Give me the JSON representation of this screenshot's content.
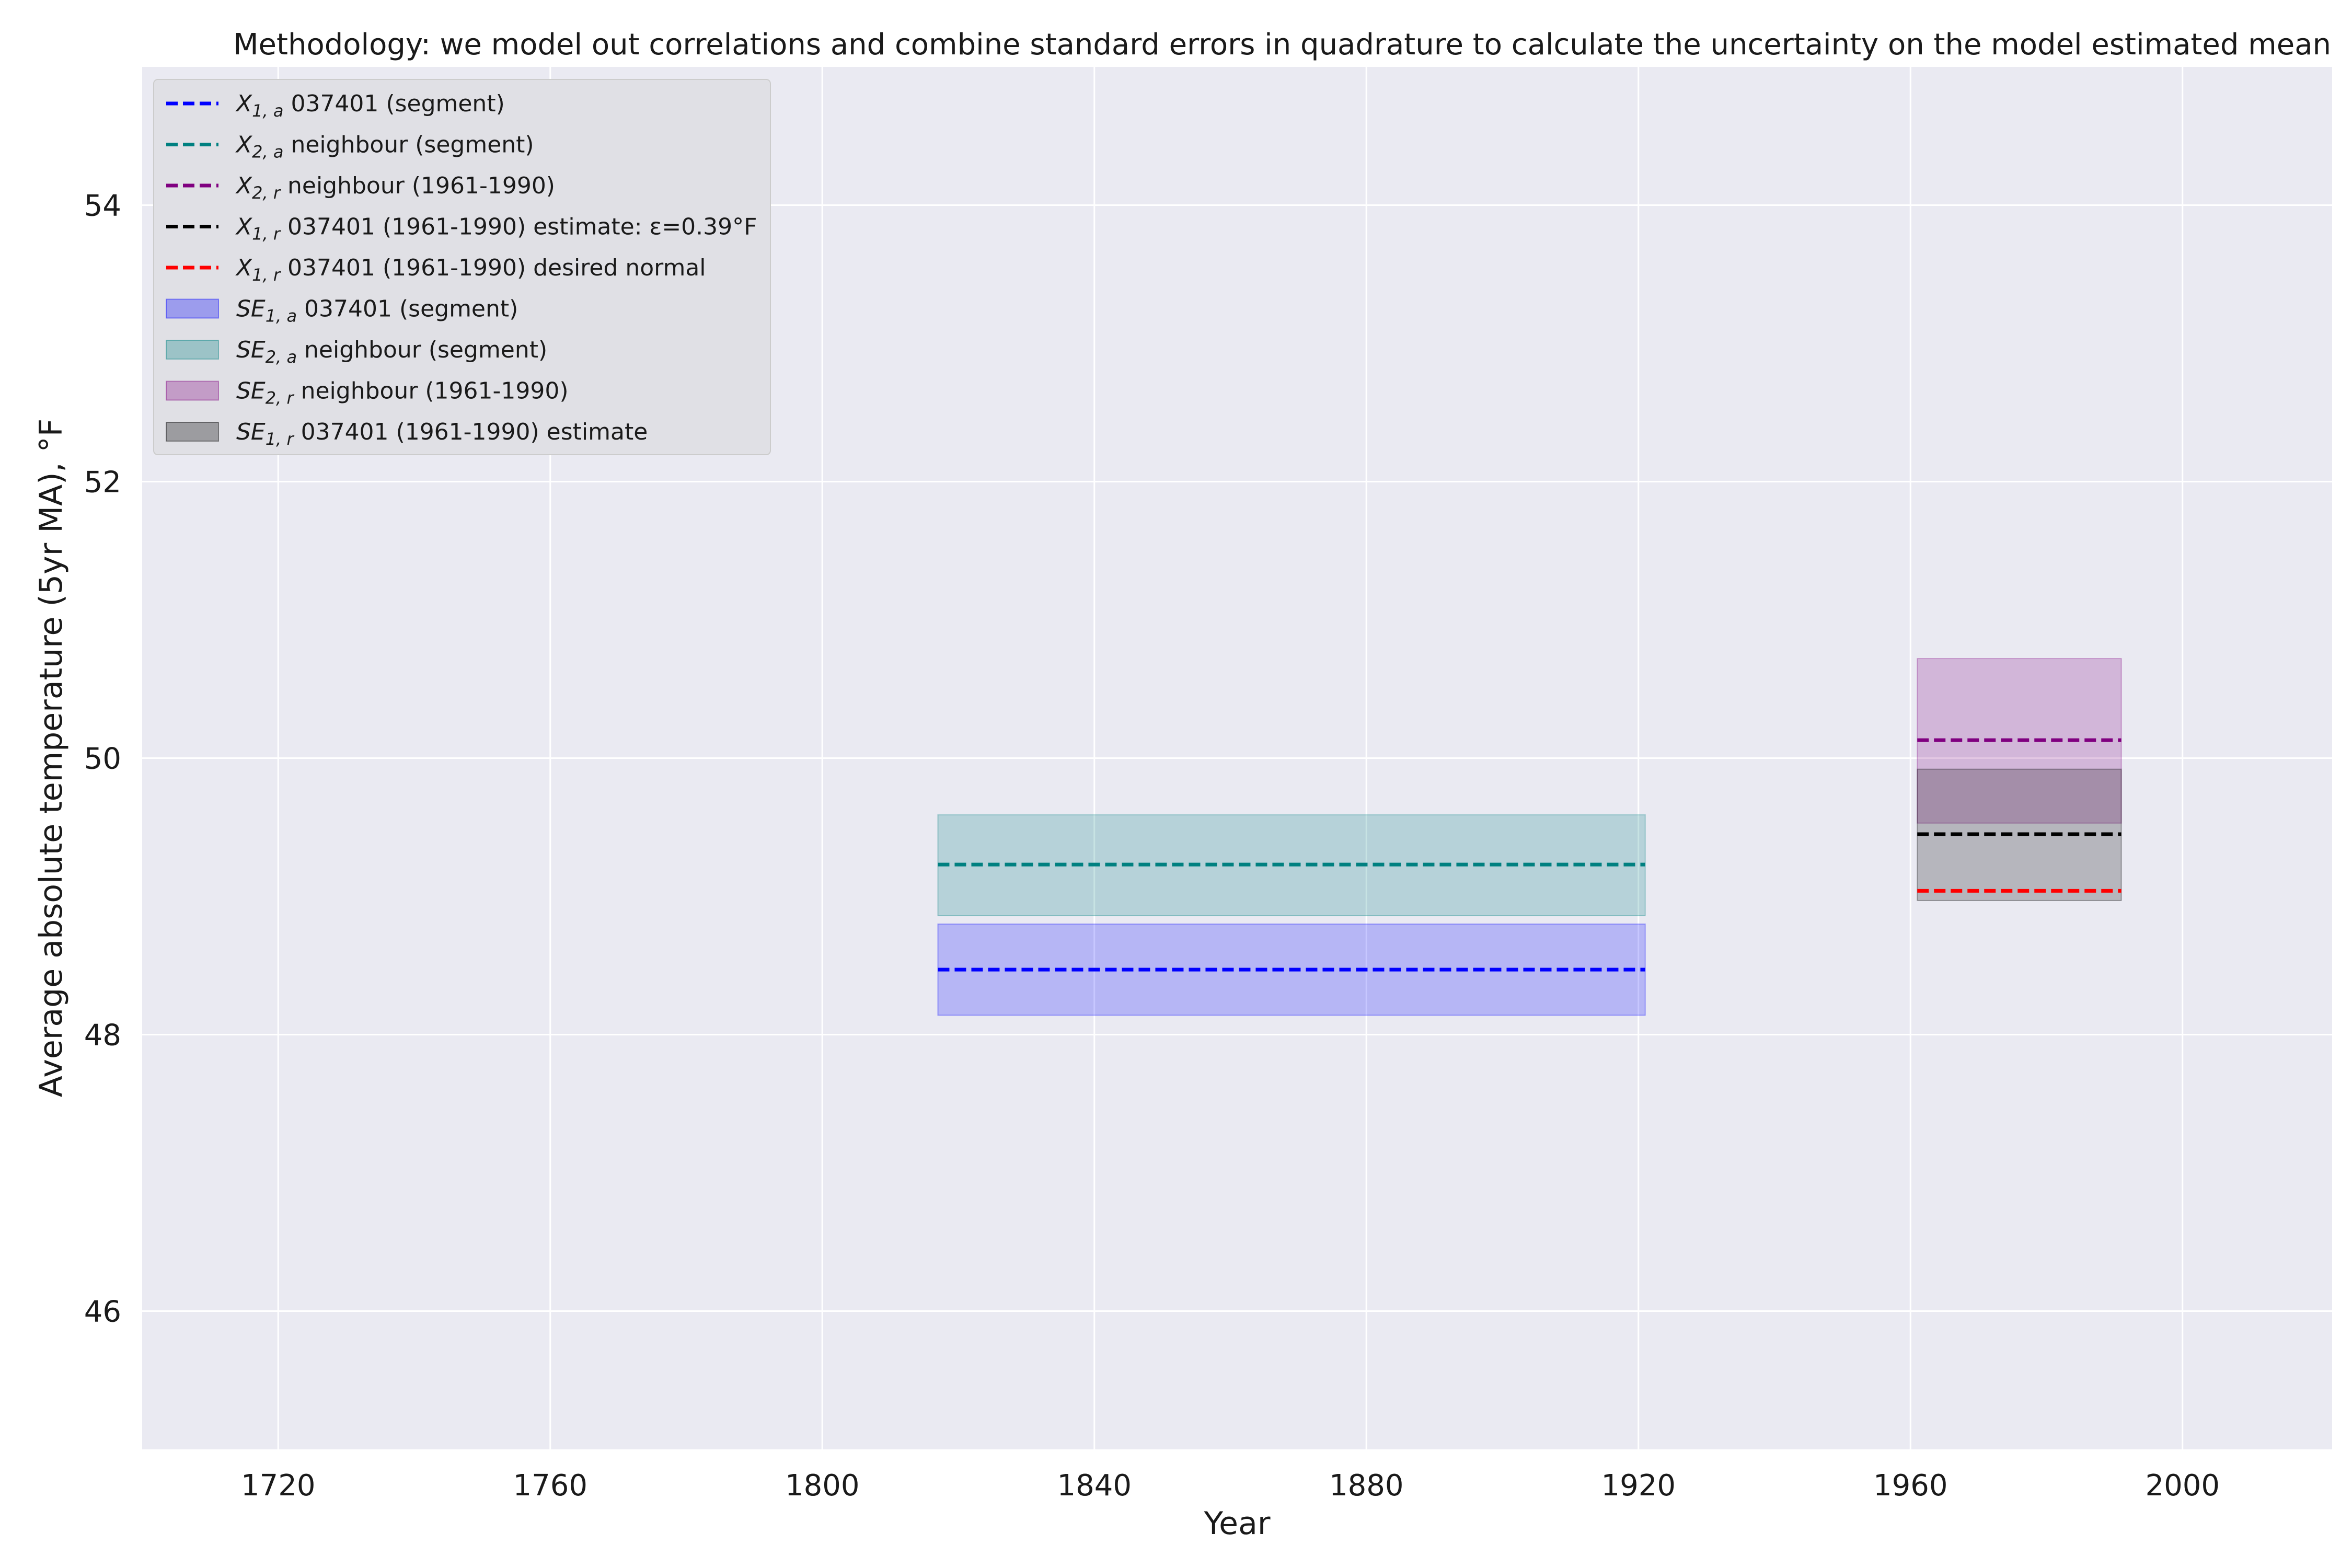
{
  "chart_data": {
    "type": "line",
    "title": "Methodology: we model out correlations and combine standard errors in quadrature to calculate the uncertainty on the model estimated mean",
    "xlabel": "Year",
    "ylabel": "Average absolute temperature (5yr MA), °F",
    "xlim": [
      1700,
      2022
    ],
    "ylim": [
      45.0,
      55.0
    ],
    "xticks": [
      1720,
      1760,
      1800,
      1840,
      1880,
      1920,
      1960,
      2000
    ],
    "yticks": [
      46,
      48,
      50,
      52,
      54
    ],
    "grid": true,
    "legend_position": "upper-left",
    "lines": [
      {
        "name": "X_{1,a} 037401 (segment)",
        "sym": "X",
        "sub": "1, a",
        "rest": " 037401 (segment)",
        "color": "#0000ff",
        "x": [
          1817,
          1921
        ],
        "y": 48.47
      },
      {
        "name": "X_{2,a} neighbour (segment)",
        "sym": "X",
        "sub": "2, a",
        "rest": " neighbour (segment)",
        "color": "#008080",
        "x": [
          1817,
          1921
        ],
        "y": 49.23
      },
      {
        "name": "X_{2,r} neighbour (1961-1990)",
        "sym": "X",
        "sub": "2, r",
        "rest": " neighbour (1961-1990)",
        "color": "#800080",
        "x": [
          1961,
          1991
        ],
        "y": 50.13
      },
      {
        "name": "X_{1,r} 037401 (1961-1990) estimate: ε=0.39°F",
        "sym": "X",
        "sub": "1, r",
        "rest": " 037401 (1961-1990) estimate: ε=0.39°F",
        "color": "#000000",
        "x": [
          1961,
          1991
        ],
        "y": 49.45
      },
      {
        "name": "X_{1,r} 037401 (1961-1990) desired normal",
        "sym": "X",
        "sub": "1, r",
        "rest": " 037401 (1961-1990) desired normal",
        "color": "#ff0000",
        "x": [
          1961,
          1991
        ],
        "y": 49.04
      }
    ],
    "bands": [
      {
        "name": "SE_{1,a} 037401 (segment)",
        "sym": "SE",
        "sub": "1, a",
        "rest": " 037401 (segment)",
        "color": "#0000ff",
        "opacity": 0.22,
        "x": [
          1817,
          1921
        ],
        "y": [
          48.14,
          48.8
        ]
      },
      {
        "name": "SE_{2,a} neighbour (segment)",
        "sym": "SE",
        "sub": "2, a",
        "rest": " neighbour (segment)",
        "color": "#008080",
        "opacity": 0.22,
        "x": [
          1817,
          1921
        ],
        "y": [
          48.86,
          49.59
        ]
      },
      {
        "name": "SE_{2,r} neighbour (1961-1990)",
        "sym": "SE",
        "sub": "2, r",
        "rest": " neighbour (1961-1990)",
        "color": "#800080",
        "opacity": 0.22,
        "x": [
          1961,
          1991
        ],
        "y": [
          49.53,
          50.72
        ]
      },
      {
        "name": "SE_{1,r} 037401 (1961-1990) estimate",
        "sym": "SE",
        "sub": "1, r",
        "rest": " 037401 (1961-1990) estimate",
        "color": "#000000",
        "opacity": 0.22,
        "x": [
          1961,
          1991
        ],
        "y": [
          48.97,
          49.92
        ]
      }
    ]
  }
}
